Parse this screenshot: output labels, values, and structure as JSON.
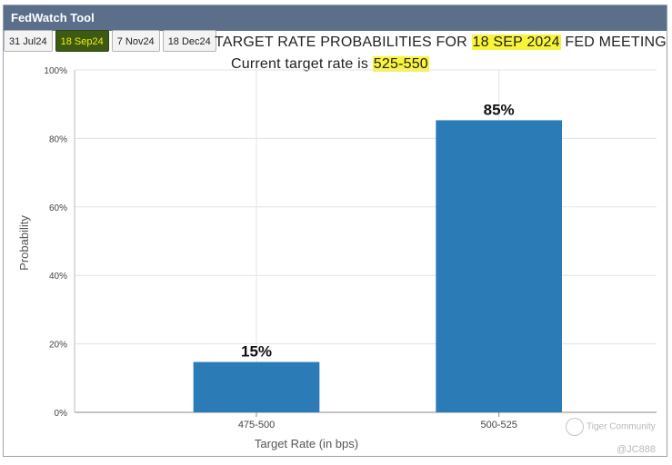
{
  "app": {
    "title": "FedWatch Tool"
  },
  "tabs": [
    {
      "label": "31 Jul24",
      "active": false
    },
    {
      "label": "18 Sep24",
      "active": true
    },
    {
      "label": "7 Nov24",
      "active": false
    },
    {
      "label": "18 Dec24",
      "active": false
    }
  ],
  "heading": {
    "title_prefix": "TARGET RATE PROBABILITIES FOR ",
    "title_date": "18 SEP 2024",
    "title_suffix": " FED MEETING",
    "subtitle_prefix": "Current target rate is ",
    "subtitle_rate": "525-550"
  },
  "chart_data": {
    "type": "bar",
    "categories": [
      "475-500",
      "500-525"
    ],
    "values": [
      14.7,
      85.3
    ],
    "data_labels": [
      "15%",
      "85%"
    ],
    "xlabel": "Target Rate (in bps)",
    "ylabel": "Probability",
    "ylim": [
      0,
      100
    ],
    "yticks": [
      "0%",
      "20%",
      "40%",
      "60%",
      "80%",
      "100%"
    ],
    "ytick_values": [
      0,
      20,
      40,
      60,
      80,
      100
    ],
    "grid": true,
    "bar_color": "#2b7bb6"
  },
  "watermark": {
    "brand": "Tiger Community",
    "handle": "@JC888"
  },
  "colors": {
    "titlebar": "#5b6f8b",
    "active_tab_bg": "#3c5a14",
    "active_tab_text": "#f5f000",
    "highlight": "#f8f43a"
  }
}
